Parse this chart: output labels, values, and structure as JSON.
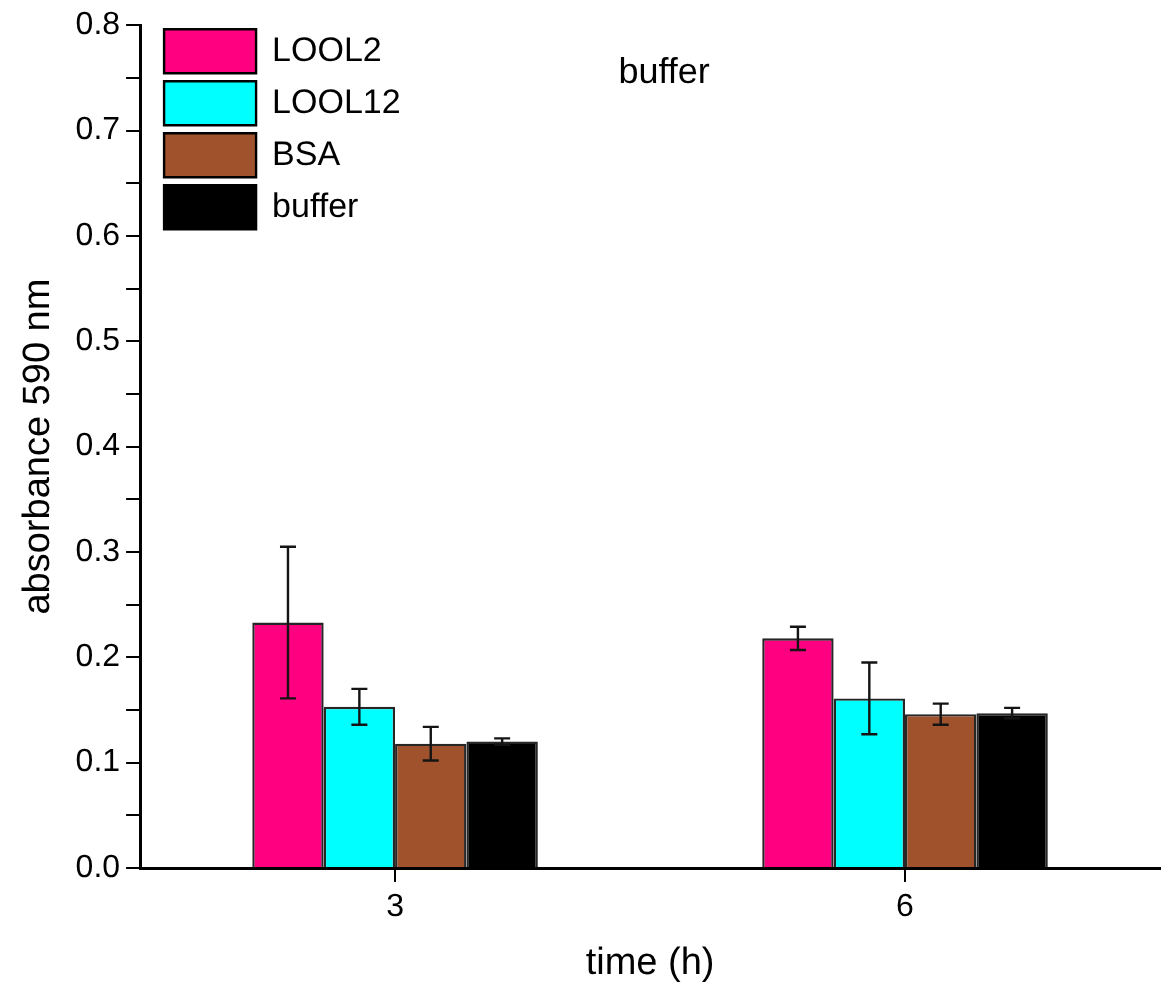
{
  "chart_data": {
    "type": "bar",
    "title": "buffer",
    "xlabel": "time (h)",
    "ylabel": "absorbance 590 nm",
    "categories": [
      "3",
      "6"
    ],
    "series": [
      {
        "name": "LOOL2",
        "color": "#ff0080",
        "values": [
          0.233,
          0.218
        ],
        "errors": [
          0.072,
          0.011
        ]
      },
      {
        "name": "LOOL12",
        "color": "#00ffff",
        "values": [
          0.153,
          0.161
        ],
        "errors": [
          0.017,
          0.034
        ]
      },
      {
        "name": "BSA",
        "color": "#a0522d",
        "values": [
          0.118,
          0.146
        ],
        "errors": [
          0.016,
          0.01
        ]
      },
      {
        "name": "buffer",
        "color": "#000000",
        "values": [
          0.12,
          0.147
        ],
        "errors": [
          0.003,
          0.005
        ]
      }
    ],
    "ylim": [
      0,
      0.8
    ],
    "yticks": [
      {
        "value": 0,
        "label": "0.0"
      },
      {
        "value": 0.05,
        "label": null
      },
      {
        "value": 0.1,
        "label": "0.1"
      },
      {
        "value": 0.15,
        "label": null
      },
      {
        "value": 0.2,
        "label": "0.2"
      },
      {
        "value": 0.25,
        "label": null
      },
      {
        "value": 0.3,
        "label": "0.3"
      },
      {
        "value": 0.35,
        "label": null
      },
      {
        "value": 0.4,
        "label": "0.4"
      },
      {
        "value": 0.45,
        "label": null
      },
      {
        "value": 0.5,
        "label": "0.5"
      },
      {
        "value": 0.55,
        "label": null
      },
      {
        "value": 0.6,
        "label": "0.6"
      },
      {
        "value": 0.65,
        "label": null
      },
      {
        "value": 0.7,
        "label": "0.7"
      },
      {
        "value": 0.75,
        "label": null
      },
      {
        "value": 0.8,
        "label": "0.8"
      }
    ],
    "grid": false,
    "legend": "top left"
  }
}
